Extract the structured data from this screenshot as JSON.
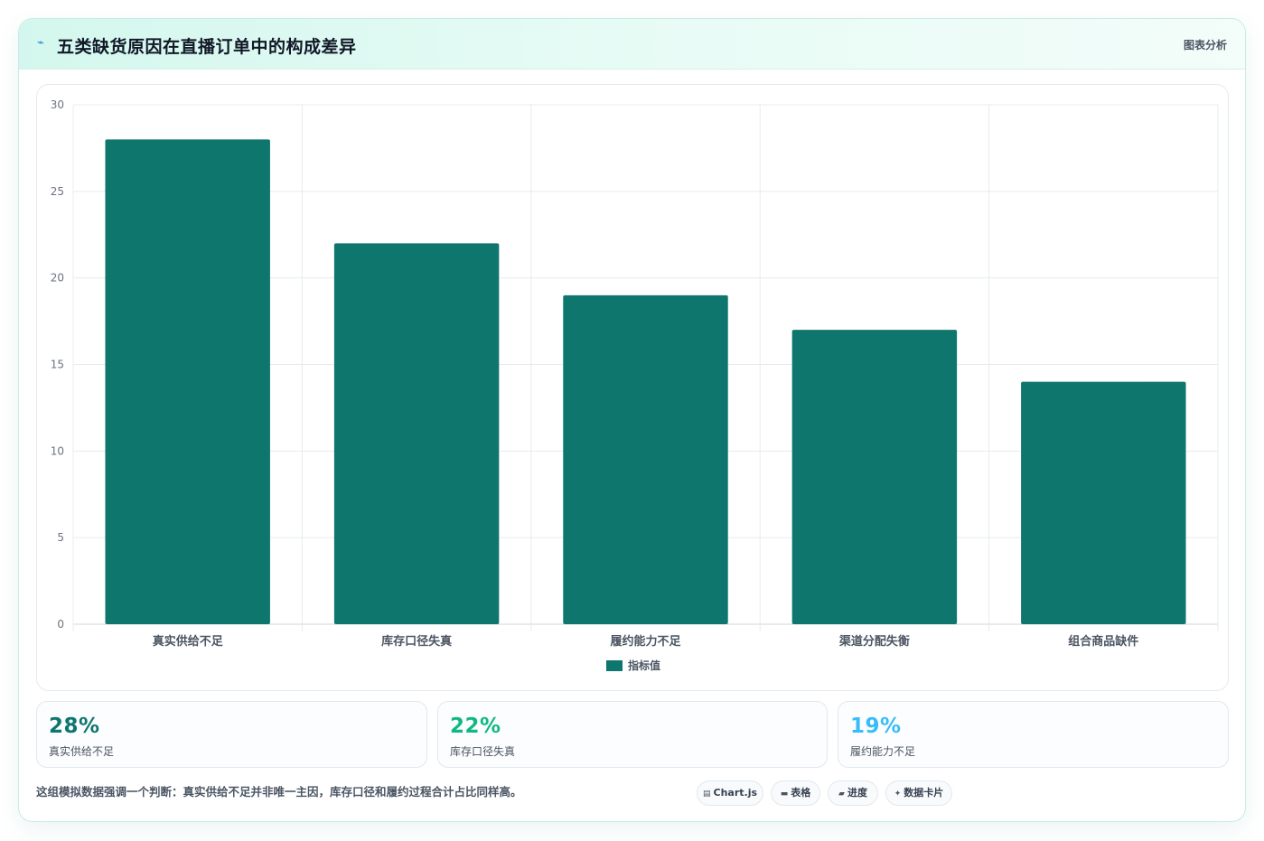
{
  "header": {
    "title": "五类缺货原因在直播订单中的构成差异",
    "title_icon": "lightning-icon",
    "link_label": "图表分析"
  },
  "chart_data": {
    "type": "bar",
    "categories": [
      "真实供给不足",
      "库存口径失真",
      "履约能力不足",
      "渠道分配失衡",
      "组合商品缺件"
    ],
    "series": [
      {
        "name": "指标值",
        "values": [
          28,
          22,
          19,
          17,
          14
        ],
        "color": "#0f766e"
      }
    ],
    "ylim": [
      0,
      30
    ],
    "yticks": [
      0,
      5,
      10,
      15,
      20,
      25,
      30
    ],
    "grid": true,
    "legend_position": "bottom"
  },
  "stats": [
    {
      "value": "28%",
      "label": "真实供给不足",
      "color": "#0f766e"
    },
    {
      "value": "22%",
      "label": "库存口径失真",
      "color": "#10b981"
    },
    {
      "value": "19%",
      "label": "履约能力不足",
      "color": "#38bdf8"
    }
  ],
  "note": "这组模拟数据强调一个判断：真实供给不足并非唯一主因，库存口径和履约过程合计占比同样高。",
  "tags": [
    {
      "icon": "chart-icon",
      "label": "Chart.js"
    },
    {
      "icon": "table-icon",
      "label": "表格"
    },
    {
      "icon": "progress-icon",
      "label": "进度"
    },
    {
      "icon": "sparkle-icon",
      "label": "数据卡片"
    }
  ]
}
